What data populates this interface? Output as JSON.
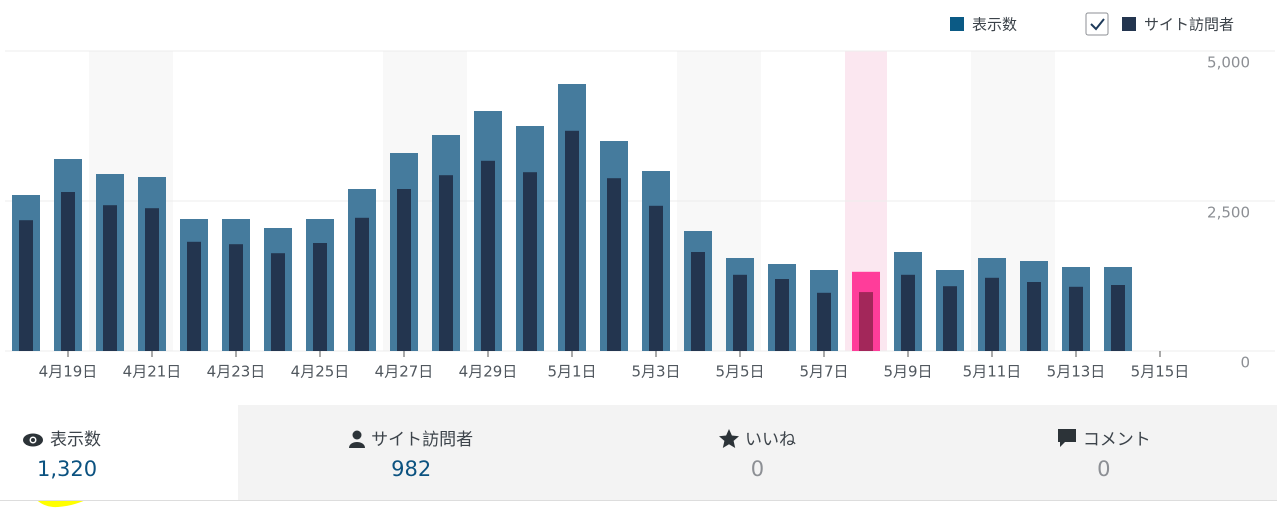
{
  "chart_data": {
    "type": "bar",
    "categories": [
      null,
      "4月19日",
      null,
      "4月21日",
      null,
      "4月23日",
      null,
      "4月25日",
      null,
      "4月27日",
      null,
      "4月29日",
      null,
      "5月1日",
      null,
      "5月3日",
      null,
      "5月5日",
      null,
      "5月7日",
      null,
      "5月9日",
      null,
      "5月11日",
      null,
      "5月13日",
      null,
      "5月15日"
    ],
    "series": [
      {
        "name": "表示数",
        "color": "#457b9d",
        "values": [
          2600,
          3200,
          2950,
          2900,
          2200,
          2200,
          2050,
          2200,
          2700,
          3300,
          3600,
          4000,
          3750,
          4450,
          3500,
          3000,
          2000,
          1550,
          1450,
          1350,
          1320,
          1650,
          1350,
          1550,
          1500,
          1400,
          1400,
          null
        ]
      },
      {
        "name": "サイト訪問者",
        "color": "#23354f",
        "values": [
          2180,
          2650,
          2430,
          2380,
          1820,
          1780,
          1630,
          1800,
          2220,
          2700,
          2930,
          3170,
          2980,
          3670,
          2880,
          2420,
          1650,
          1270,
          1200,
          970,
          982,
          1270,
          1080,
          1220,
          1150,
          1070,
          1100,
          null
        ]
      }
    ],
    "ylim": [
      0,
      5000
    ],
    "yticks": [
      0,
      {
        "value": 2500,
        "label": "2,500"
      },
      {
        "value": 5000,
        "label": "5,000"
      }
    ],
    "grid": true
  },
  "summary": [
    {
      "label": "表示数",
      "value": "1,320"
    },
    {
      "label": "サイト訪問者",
      "value": "982"
    },
    {
      "label": "いいね",
      "value": "0"
    },
    {
      "label": "コメント",
      "value": "0"
    }
  ]
}
